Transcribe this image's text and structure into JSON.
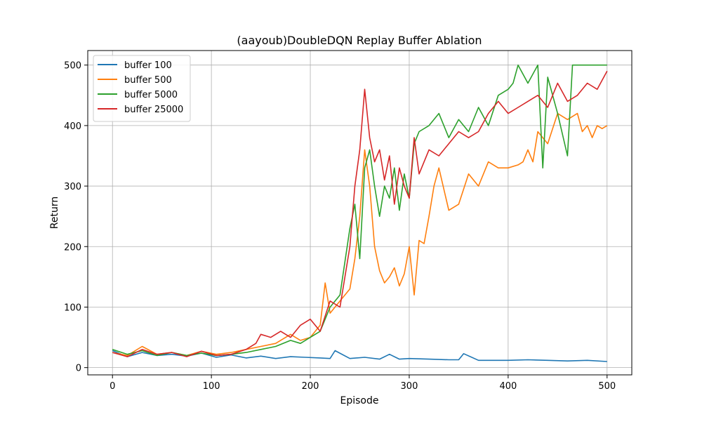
{
  "chart_data": {
    "type": "line",
    "title": "(aayoub)DoubleDQN Replay Buffer Ablation",
    "xlabel": "Episode",
    "ylabel": "Return",
    "xlim": [
      -25,
      525
    ],
    "ylim": [
      -12,
      524
    ],
    "xticks": [
      0,
      100,
      200,
      300,
      400,
      500
    ],
    "yticks": [
      0,
      100,
      200,
      300,
      400,
      500
    ],
    "grid": true,
    "legend_position": "top-left",
    "series": [
      {
        "name": "buffer 100",
        "color": "#1f77b4",
        "x": [
          0,
          15,
          30,
          45,
          60,
          75,
          90,
          105,
          120,
          135,
          150,
          165,
          180,
          195,
          210,
          220,
          225,
          240,
          255,
          270,
          280,
          290,
          300,
          320,
          340,
          350,
          355,
          370,
          390,
          400,
          420,
          440,
          460,
          480,
          500
        ],
        "y": [
          28,
          18,
          25,
          20,
          22,
          19,
          24,
          17,
          21,
          16,
          19,
          15,
          18,
          17,
          16,
          15,
          28,
          15,
          17,
          14,
          22,
          14,
          15,
          14,
          13,
          13,
          23,
          12,
          12,
          12,
          13,
          12,
          11,
          12,
          10
        ]
      },
      {
        "name": "buffer 500",
        "color": "#ff7f0e",
        "x": [
          0,
          15,
          30,
          45,
          60,
          75,
          90,
          105,
          120,
          135,
          150,
          165,
          180,
          190,
          200,
          210,
          215,
          220,
          230,
          240,
          245,
          250,
          255,
          260,
          265,
          270,
          275,
          280,
          285,
          290,
          295,
          300,
          305,
          310,
          315,
          320,
          325,
          330,
          340,
          350,
          360,
          370,
          380,
          390,
          400,
          410,
          415,
          420,
          425,
          430,
          440,
          450,
          460,
          470,
          475,
          480,
          485,
          490,
          495,
          500
        ],
        "y": [
          25,
          20,
          35,
          22,
          25,
          20,
          27,
          22,
          25,
          30,
          35,
          40,
          55,
          45,
          50,
          70,
          140,
          90,
          110,
          130,
          180,
          250,
          360,
          300,
          200,
          160,
          140,
          150,
          165,
          135,
          155,
          200,
          120,
          210,
          205,
          250,
          300,
          330,
          260,
          270,
          320,
          300,
          340,
          330,
          330,
          335,
          340,
          360,
          340,
          390,
          370,
          420,
          410,
          420,
          390,
          400,
          380,
          400,
          395,
          400
        ]
      },
      {
        "name": "buffer 5000",
        "color": "#2ca02c",
        "x": [
          0,
          15,
          30,
          45,
          60,
          75,
          90,
          105,
          120,
          135,
          150,
          165,
          180,
          190,
          200,
          210,
          220,
          230,
          240,
          245,
          250,
          255,
          260,
          265,
          270,
          275,
          280,
          285,
          290,
          295,
          300,
          305,
          310,
          320,
          330,
          340,
          350,
          360,
          370,
          380,
          390,
          400,
          405,
          410,
          420,
          430,
          435,
          440,
          450,
          460,
          465,
          470,
          480,
          490,
          500
        ],
        "y": [
          30,
          22,
          28,
          20,
          25,
          20,
          24,
          20,
          22,
          25,
          30,
          35,
          45,
          40,
          50,
          60,
          100,
          120,
          230,
          270,
          180,
          330,
          360,
          300,
          250,
          300,
          280,
          330,
          260,
          320,
          280,
          370,
          390,
          400,
          420,
          380,
          410,
          390,
          430,
          400,
          450,
          460,
          470,
          500,
          470,
          500,
          330,
          480,
          420,
          350,
          500,
          500,
          500,
          500,
          500
        ]
      },
      {
        "name": "buffer 25000",
        "color": "#d62728",
        "x": [
          0,
          15,
          30,
          45,
          60,
          75,
          90,
          105,
          120,
          135,
          145,
          150,
          160,
          170,
          180,
          190,
          200,
          210,
          220,
          230,
          240,
          245,
          250,
          255,
          260,
          265,
          270,
          275,
          280,
          285,
          290,
          295,
          300,
          305,
          310,
          320,
          330,
          340,
          350,
          360,
          370,
          380,
          390,
          400,
          410,
          420,
          430,
          440,
          450,
          460,
          470,
          480,
          490,
          500
        ],
        "y": [
          25,
          18,
          30,
          22,
          25,
          18,
          27,
          20,
          22,
          30,
          40,
          55,
          50,
          60,
          50,
          70,
          80,
          60,
          110,
          100,
          200,
          300,
          360,
          460,
          380,
          340,
          360,
          310,
          350,
          270,
          330,
          300,
          280,
          380,
          320,
          360,
          350,
          370,
          390,
          380,
          390,
          420,
          440,
          420,
          430,
          440,
          450,
          430,
          470,
          440,
          450,
          470,
          460,
          490
        ]
      }
    ]
  }
}
